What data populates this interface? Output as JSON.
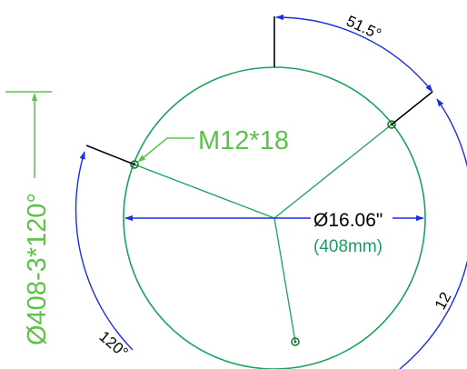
{
  "drawing": {
    "bolt_label": "M12*18",
    "diameter_label": "Ø16.06\"",
    "diameter_metric": "(408mm)",
    "vertical_callout": "Ø408-3*120°",
    "angle_top": "51.5°",
    "angle_bottom_left": "120°",
    "angle_right_partial": "12"
  },
  "colors": {
    "circle": "#1aa35a",
    "green_text": "#5cc24a",
    "dimension": "#1a2fe0",
    "leader": "#000000",
    "diameter_text": "#000000",
    "metric_text": "#1f9a64"
  }
}
